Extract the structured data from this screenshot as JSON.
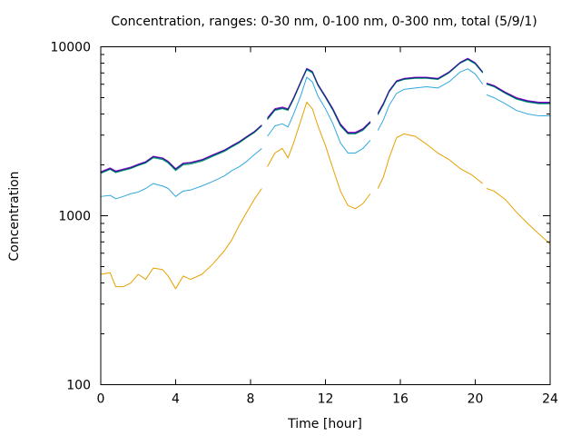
{
  "chart_data": {
    "type": "line",
    "title": "Concentration, ranges: 0-30 nm, 0-100 nm, 0-300 nm, total (5/9/1)",
    "xlabel": "Time [hour]",
    "ylabel": "Concentration",
    "xlim": [
      0,
      24
    ],
    "ylim": [
      100,
      10000
    ],
    "y_scale": "log",
    "grid": false,
    "legend": "none",
    "x_ticks": [
      0,
      4,
      8,
      12,
      16,
      20,
      24
    ],
    "x_tick_labels": [
      "0",
      "4",
      "8",
      "12",
      "16",
      "20",
      "24"
    ],
    "y_ticks": [
      100,
      1000,
      10000
    ],
    "y_tick_labels": [
      "100",
      "1000",
      "10000"
    ],
    "series": [
      {
        "color": "#E8A000",
        "points": [
          [
            0,
            450
          ],
          [
            0.5,
            460
          ],
          [
            0.8,
            380
          ],
          [
            1.2,
            380
          ],
          [
            1.6,
            400
          ],
          [
            2.0,
            450
          ],
          [
            2.4,
            420
          ],
          [
            2.8,
            490
          ],
          [
            3.3,
            480
          ],
          [
            3.6,
            440
          ],
          [
            4.0,
            370
          ],
          [
            4.4,
            440
          ],
          [
            4.8,
            420
          ],
          [
            5.4,
            450
          ],
          [
            6.0,
            520
          ],
          [
            6.6,
            620
          ],
          [
            7.0,
            720
          ],
          [
            7.4,
            880
          ],
          [
            7.8,
            1050
          ],
          [
            8.2,
            1250
          ],
          [
            8.6,
            1450
          ],
          null,
          [
            8.9,
            1950
          ],
          [
            9.3,
            2350
          ],
          [
            9.7,
            2500
          ],
          [
            10.0,
            2200
          ],
          [
            10.3,
            2700
          ],
          [
            10.7,
            3700
          ],
          [
            11.0,
            4700
          ],
          [
            11.3,
            4300
          ],
          [
            11.6,
            3400
          ],
          [
            12.0,
            2600
          ],
          [
            12.4,
            1900
          ],
          [
            12.8,
            1400
          ],
          [
            13.2,
            1150
          ],
          [
            13.6,
            1100
          ],
          [
            14.0,
            1180
          ],
          [
            14.4,
            1350
          ],
          null,
          [
            14.8,
            1450
          ],
          [
            15.1,
            1700
          ],
          [
            15.4,
            2200
          ],
          [
            15.8,
            2900
          ],
          [
            16.2,
            3050
          ],
          [
            16.8,
            2950
          ],
          [
            17.4,
            2650
          ],
          [
            18.0,
            2350
          ],
          [
            18.6,
            2150
          ],
          [
            19.2,
            1900
          ],
          [
            19.8,
            1750
          ],
          [
            20.4,
            1550
          ],
          null,
          [
            20.6,
            1450
          ],
          [
            21.0,
            1400
          ],
          [
            21.6,
            1250
          ],
          [
            22.2,
            1050
          ],
          [
            22.8,
            900
          ],
          [
            23.4,
            780
          ],
          [
            24.0,
            680
          ]
        ]
      },
      {
        "color": "#30A8E0",
        "points": [
          [
            0,
            1300
          ],
          [
            0.5,
            1320
          ],
          [
            0.8,
            1260
          ],
          [
            1.2,
            1300
          ],
          [
            1.6,
            1350
          ],
          [
            2.0,
            1380
          ],
          [
            2.4,
            1450
          ],
          [
            2.8,
            1550
          ],
          [
            3.3,
            1500
          ],
          [
            3.6,
            1450
          ],
          [
            4.0,
            1300
          ],
          [
            4.4,
            1400
          ],
          [
            4.8,
            1420
          ],
          [
            5.4,
            1500
          ],
          [
            6.0,
            1600
          ],
          [
            6.6,
            1720
          ],
          [
            7.0,
            1850
          ],
          [
            7.4,
            1950
          ],
          [
            7.8,
            2100
          ],
          [
            8.2,
            2300
          ],
          [
            8.6,
            2500
          ],
          null,
          [
            8.9,
            2950
          ],
          [
            9.3,
            3400
          ],
          [
            9.7,
            3500
          ],
          [
            10.0,
            3350
          ],
          [
            10.3,
            4000
          ],
          [
            10.7,
            5200
          ],
          [
            11.0,
            6600
          ],
          [
            11.3,
            6200
          ],
          [
            11.6,
            5100
          ],
          [
            12.0,
            4300
          ],
          [
            12.4,
            3500
          ],
          [
            12.8,
            2700
          ],
          [
            13.2,
            2350
          ],
          [
            13.6,
            2350
          ],
          [
            14.0,
            2500
          ],
          [
            14.4,
            2800
          ],
          null,
          [
            14.8,
            3200
          ],
          [
            15.1,
            3700
          ],
          [
            15.4,
            4500
          ],
          [
            15.8,
            5300
          ],
          [
            16.2,
            5600
          ],
          [
            16.8,
            5700
          ],
          [
            17.4,
            5800
          ],
          [
            18.0,
            5700
          ],
          [
            18.6,
            6200
          ],
          [
            19.2,
            7100
          ],
          [
            19.6,
            7400
          ],
          [
            20.0,
            6900
          ],
          [
            20.4,
            6000
          ],
          null,
          [
            20.6,
            5200
          ],
          [
            21.0,
            5000
          ],
          [
            21.6,
            4600
          ],
          [
            22.2,
            4200
          ],
          [
            22.8,
            4000
          ],
          [
            23.4,
            3900
          ],
          [
            24.0,
            3900
          ]
        ]
      },
      {
        "color": "#009E73",
        "points": [
          [
            0,
            1780
          ],
          [
            0.5,
            1880
          ],
          [
            0.8,
            1800
          ],
          [
            1.2,
            1850
          ],
          [
            1.6,
            1900
          ],
          [
            2.0,
            1980
          ],
          [
            2.4,
            2050
          ],
          [
            2.8,
            2200
          ],
          [
            3.3,
            2150
          ],
          [
            3.6,
            2050
          ],
          [
            4.0,
            1850
          ],
          [
            4.4,
            2000
          ],
          [
            4.8,
            2020
          ],
          [
            5.4,
            2100
          ],
          [
            6.0,
            2250
          ],
          [
            6.6,
            2400
          ],
          [
            7.0,
            2550
          ],
          [
            7.4,
            2700
          ],
          [
            7.8,
            2900
          ],
          [
            8.2,
            3100
          ],
          [
            8.6,
            3400
          ],
          null,
          [
            8.9,
            3700
          ],
          [
            9.3,
            4200
          ],
          [
            9.7,
            4300
          ],
          [
            10.0,
            4200
          ],
          [
            10.3,
            4900
          ],
          [
            10.7,
            6200
          ],
          [
            11.0,
            7300
          ],
          [
            11.3,
            7000
          ],
          [
            11.6,
            5900
          ],
          [
            12.0,
            5000
          ],
          [
            12.4,
            4200
          ],
          [
            12.8,
            3400
          ],
          [
            13.2,
            3050
          ],
          [
            13.6,
            3050
          ],
          [
            14.0,
            3200
          ],
          [
            14.4,
            3550
          ],
          null,
          [
            14.8,
            3950
          ],
          [
            15.1,
            4550
          ],
          [
            15.4,
            5400
          ],
          [
            15.8,
            6200
          ],
          [
            16.2,
            6400
          ],
          [
            16.8,
            6500
          ],
          [
            17.4,
            6500
          ],
          [
            18.0,
            6400
          ],
          [
            18.6,
            7000
          ],
          [
            19.2,
            8000
          ],
          [
            19.6,
            8400
          ],
          [
            20.0,
            7900
          ],
          [
            20.4,
            7000
          ],
          null,
          [
            20.6,
            6000
          ],
          [
            21.0,
            5800
          ],
          [
            21.6,
            5300
          ],
          [
            22.2,
            4900
          ],
          [
            22.8,
            4700
          ],
          [
            23.4,
            4600
          ],
          [
            24.0,
            4600
          ]
        ]
      },
      {
        "color": "#9400D3",
        "points": [
          [
            0,
            1820
          ],
          [
            0.5,
            1920
          ],
          [
            0.8,
            1840
          ],
          [
            1.2,
            1890
          ],
          [
            1.6,
            1940
          ],
          [
            2.0,
            2020
          ],
          [
            2.4,
            2090
          ],
          [
            2.8,
            2250
          ],
          [
            3.3,
            2200
          ],
          [
            3.6,
            2100
          ],
          [
            4.0,
            1900
          ],
          [
            4.4,
            2050
          ],
          [
            4.8,
            2070
          ],
          [
            5.4,
            2150
          ],
          [
            6.0,
            2300
          ],
          [
            6.6,
            2450
          ],
          [
            7.0,
            2600
          ],
          [
            7.4,
            2750
          ],
          [
            7.8,
            2950
          ],
          [
            8.2,
            3150
          ],
          [
            8.6,
            3450
          ],
          null,
          [
            8.9,
            3800
          ],
          [
            9.3,
            4300
          ],
          [
            9.7,
            4400
          ],
          [
            10.0,
            4300
          ],
          [
            10.3,
            5000
          ],
          [
            10.7,
            6300
          ],
          [
            11.0,
            7450
          ],
          [
            11.3,
            7150
          ],
          [
            11.6,
            6000
          ],
          [
            12.0,
            5100
          ],
          [
            12.4,
            4300
          ],
          [
            12.8,
            3500
          ],
          [
            13.2,
            3120
          ],
          [
            13.6,
            3120
          ],
          [
            14.0,
            3280
          ],
          [
            14.4,
            3620
          ],
          null,
          [
            14.8,
            4050
          ],
          [
            15.1,
            4650
          ],
          [
            15.4,
            5500
          ],
          [
            15.8,
            6300
          ],
          [
            16.2,
            6500
          ],
          [
            16.8,
            6600
          ],
          [
            17.4,
            6600
          ],
          [
            18.0,
            6500
          ],
          [
            18.6,
            7100
          ],
          [
            19.2,
            8100
          ],
          [
            19.6,
            8550
          ],
          [
            20.0,
            8050
          ],
          [
            20.4,
            7100
          ],
          null,
          [
            20.6,
            6100
          ],
          [
            21.0,
            5900
          ],
          [
            21.6,
            5400
          ],
          [
            22.2,
            5000
          ],
          [
            22.8,
            4800
          ],
          [
            23.4,
            4700
          ],
          [
            24.0,
            4700
          ]
        ]
      },
      {
        "color": "#0A2C7A",
        "points": [
          [
            0,
            1800
          ],
          [
            0.5,
            1900
          ],
          [
            0.8,
            1820
          ],
          [
            1.2,
            1870
          ],
          [
            1.6,
            1920
          ],
          [
            2.0,
            2000
          ],
          [
            2.4,
            2070
          ],
          [
            2.8,
            2230
          ],
          [
            3.3,
            2180
          ],
          [
            3.6,
            2080
          ],
          [
            4.0,
            1880
          ],
          [
            4.4,
            2030
          ],
          [
            4.8,
            2050
          ],
          [
            5.4,
            2130
          ],
          [
            6.0,
            2280
          ],
          [
            6.6,
            2430
          ],
          [
            7.0,
            2580
          ],
          [
            7.4,
            2730
          ],
          [
            7.8,
            2930
          ],
          [
            8.2,
            3130
          ],
          [
            8.6,
            3430
          ],
          null,
          [
            8.9,
            3750
          ],
          [
            9.3,
            4250
          ],
          [
            9.7,
            4350
          ],
          [
            10.0,
            4250
          ],
          [
            10.3,
            4950
          ],
          [
            10.7,
            6250
          ],
          [
            11.0,
            7400
          ],
          [
            11.3,
            7100
          ],
          [
            11.6,
            5950
          ],
          [
            12.0,
            5050
          ],
          [
            12.4,
            4250
          ],
          [
            12.8,
            3450
          ],
          [
            13.2,
            3080
          ],
          [
            13.6,
            3080
          ],
          [
            14.0,
            3240
          ],
          [
            14.4,
            3580
          ],
          null,
          [
            14.8,
            4000
          ],
          [
            15.1,
            4600
          ],
          [
            15.4,
            5450
          ],
          [
            15.8,
            6250
          ],
          [
            16.2,
            6450
          ],
          [
            16.8,
            6550
          ],
          [
            17.4,
            6550
          ],
          [
            18.0,
            6450
          ],
          [
            18.6,
            7050
          ],
          [
            19.2,
            8050
          ],
          [
            19.6,
            8480
          ],
          [
            20.0,
            8000
          ],
          [
            20.4,
            7050
          ],
          null,
          [
            20.6,
            6050
          ],
          [
            21.0,
            5850
          ],
          [
            21.6,
            5350
          ],
          [
            22.2,
            4950
          ],
          [
            22.8,
            4750
          ],
          [
            23.4,
            4650
          ],
          [
            24.0,
            4650
          ]
        ]
      }
    ]
  }
}
